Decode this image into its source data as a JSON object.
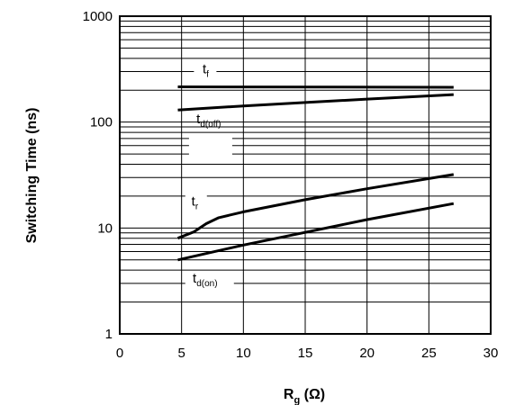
{
  "chart_data": {
    "type": "line",
    "title": "",
    "xlabel": "R",
    "xlabel_sub": "g",
    "xlabel_unit": " (Ω)",
    "ylabel": "Switching Time (ns)",
    "xlim": [
      0,
      30
    ],
    "ylim": [
      1,
      1000
    ],
    "yscale": "log",
    "grid": true,
    "x_ticks": [
      "0",
      "5",
      "10",
      "15",
      "20",
      "25",
      "30"
    ],
    "y_ticks": [
      "1",
      "10",
      "100",
      "1000"
    ],
    "series": [
      {
        "name": "t",
        "sub": "f",
        "x": [
          4.7,
          27
        ],
        "y": [
          215,
          213
        ]
      },
      {
        "name": "t",
        "sub": "d(off)",
        "x": [
          4.7,
          10,
          15,
          20,
          27
        ],
        "y": [
          130,
          142,
          153,
          165,
          182
        ]
      },
      {
        "name": "t",
        "sub": "r",
        "x": [
          4.7,
          6,
          7,
          8,
          10,
          15,
          20,
          27
        ],
        "y": [
          8,
          9.2,
          11,
          12.5,
          14.2,
          18.5,
          23.5,
          32
        ]
      },
      {
        "name": "t",
        "sub": "d(on)",
        "x": [
          4.7,
          10,
          15,
          20,
          27
        ],
        "y": [
          5,
          6.9,
          9.1,
          12,
          17
        ]
      }
    ]
  }
}
